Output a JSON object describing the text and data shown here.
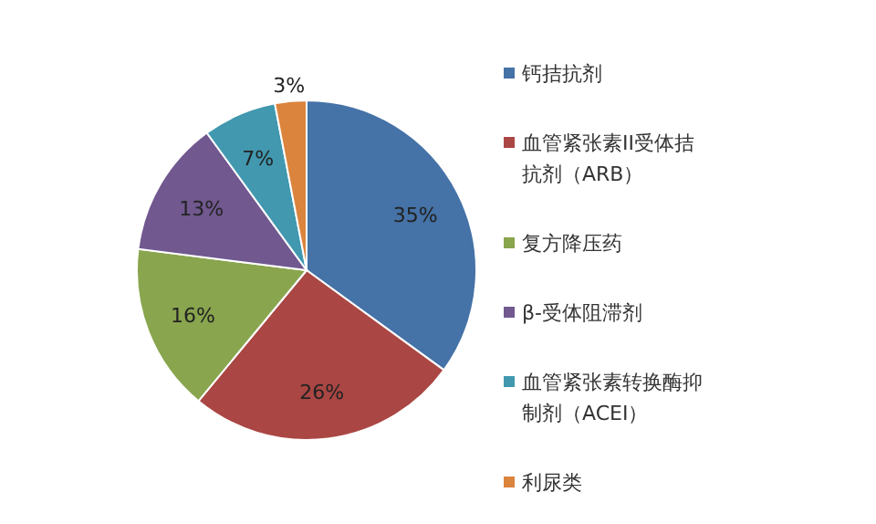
{
  "chart_data": {
    "type": "pie",
    "categories": [
      "钙拮抗剂",
      "血管紧张素II受体拮抗剂（ARB）",
      "复方降压药",
      "β-受体阻滞剂",
      "血管紧张素转换酶抑制剂（ACEI）",
      "利尿类"
    ],
    "values": [
      35,
      26,
      16,
      13,
      7,
      3
    ],
    "colors": [
      "#4572a7",
      "#aa4643",
      "#89a54e",
      "#71588f",
      "#4198af",
      "#db843d"
    ],
    "value_labels": [
      "35%",
      "26%",
      "16%",
      "13%",
      "7%",
      "3%"
    ],
    "legend": "right"
  }
}
